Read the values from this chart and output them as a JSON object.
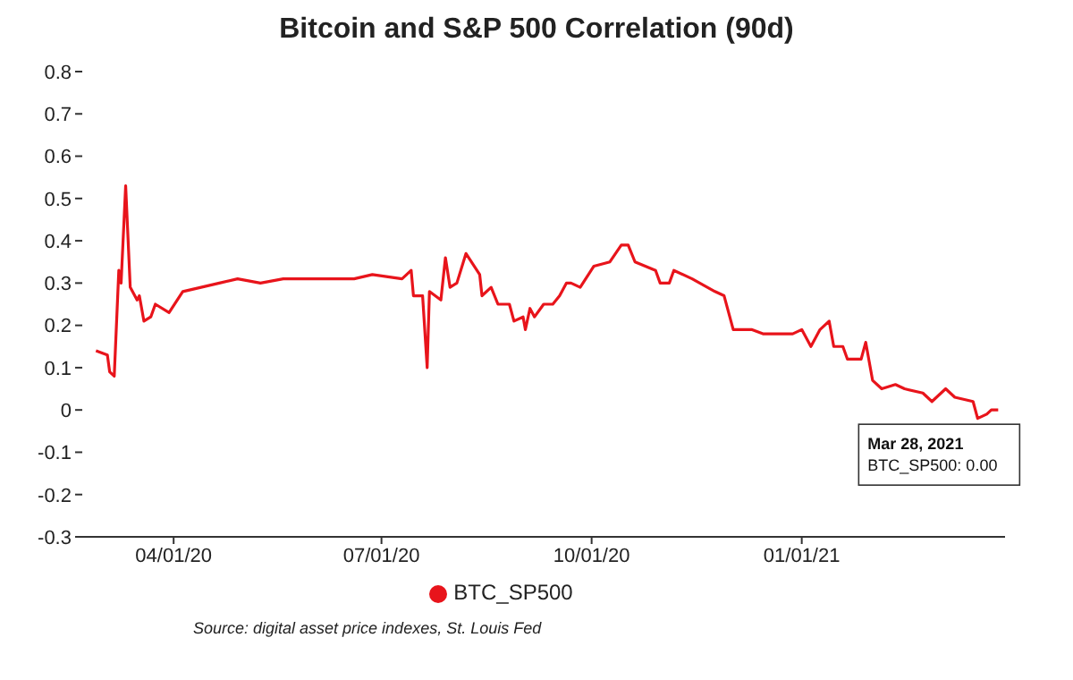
{
  "chart_data": {
    "type": "line",
    "title": "Bitcoin and S&P 500 Correlation (90d)",
    "x": [
      "2020-02-27",
      "2020-03-03",
      "2020-03-04",
      "2020-03-06",
      "2020-03-08",
      "2020-03-09",
      "2020-03-11",
      "2020-03-13",
      "2020-03-16",
      "2020-03-17",
      "2020-03-19",
      "2020-03-22",
      "2020-03-24",
      "2020-03-30",
      "2020-04-05",
      "2020-04-13",
      "2020-04-21",
      "2020-04-29",
      "2020-05-09",
      "2020-05-19",
      "2020-06-04",
      "2020-06-19",
      "2020-06-27",
      "2020-07-10",
      "2020-07-14",
      "2020-07-15",
      "2020-07-19",
      "2020-07-21",
      "2020-07-22",
      "2020-07-27",
      "2020-07-29",
      "2020-07-31",
      "2020-08-03",
      "2020-08-07",
      "2020-08-13",
      "2020-08-14",
      "2020-08-18",
      "2020-08-21",
      "2020-08-26",
      "2020-08-28",
      "2020-09-01",
      "2020-09-02",
      "2020-09-04",
      "2020-09-06",
      "2020-09-10",
      "2020-09-14",
      "2020-09-17",
      "2020-09-20",
      "2020-09-22",
      "2020-09-26",
      "2020-10-02",
      "2020-10-09",
      "2020-10-14",
      "2020-10-17",
      "2020-10-20",
      "2020-10-29",
      "2020-10-31",
      "2020-11-04",
      "2020-11-06",
      "2020-11-14",
      "2020-11-24",
      "2020-11-28",
      "2020-12-02",
      "2020-12-05",
      "2020-12-10",
      "2020-12-15",
      "2020-12-28",
      "2021-01-01",
      "2021-01-05",
      "2021-01-09",
      "2021-01-13",
      "2021-01-15",
      "2021-01-19",
      "2021-01-21",
      "2021-01-27",
      "2021-01-29",
      "2021-02-01",
      "2021-02-05",
      "2021-02-11",
      "2021-02-15",
      "2021-02-23",
      "2021-02-27",
      "2021-03-05",
      "2021-03-09",
      "2021-03-17",
      "2021-03-19",
      "2021-03-23",
      "2021-03-25",
      "2021-03-28"
    ],
    "series": [
      {
        "name": "BTC_SP500",
        "color": "#e8141b",
        "values": [
          0.14,
          0.13,
          0.09,
          0.08,
          0.33,
          0.3,
          0.53,
          0.29,
          0.26,
          0.27,
          0.21,
          0.22,
          0.25,
          0.23,
          0.28,
          0.29,
          0.3,
          0.31,
          0.3,
          0.31,
          0.31,
          0.31,
          0.32,
          0.31,
          0.33,
          0.27,
          0.27,
          0.1,
          0.28,
          0.26,
          0.36,
          0.29,
          0.3,
          0.37,
          0.32,
          0.27,
          0.29,
          0.25,
          0.25,
          0.21,
          0.22,
          0.19,
          0.24,
          0.22,
          0.25,
          0.25,
          0.27,
          0.3,
          0.3,
          0.29,
          0.34,
          0.35,
          0.39,
          0.39,
          0.35,
          0.33,
          0.3,
          0.3,
          0.33,
          0.31,
          0.28,
          0.27,
          0.19,
          0.19,
          0.19,
          0.18,
          0.18,
          0.19,
          0.15,
          0.19,
          0.21,
          0.15,
          0.15,
          0.12,
          0.12,
          0.16,
          0.07,
          0.05,
          0.06,
          0.05,
          0.04,
          0.02,
          0.05,
          0.03,
          0.02,
          -0.02,
          -0.01,
          0.0,
          0.0
        ]
      }
    ],
    "xlim": [
      "2020-02-21",
      "2021-03-31"
    ],
    "xticks": [
      {
        "value": "2020-04-01",
        "label": "04/01/20"
      },
      {
        "value": "2020-07-01",
        "label": "07/01/20"
      },
      {
        "value": "2020-10-01",
        "label": "10/01/20"
      },
      {
        "value": "2021-01-01",
        "label": "01/01/21"
      }
    ],
    "ylim": [
      -0.3,
      0.8
    ],
    "yticks": [
      -0.3,
      -0.2,
      -0.1,
      0,
      0.1,
      0.2,
      0.3,
      0.4,
      0.5,
      0.6,
      0.7,
      0.8
    ],
    "grid": false,
    "legend": "bottom",
    "marker": "none",
    "line_style": "solid",
    "annotations": [
      {
        "text": "Mar 28, 2021\nBTC_SP500: 0.00",
        "x": "2021-03-28",
        "y": 0.0
      },
      "Source: digital asset price indexes, St. Louis Fed"
    ]
  }
}
